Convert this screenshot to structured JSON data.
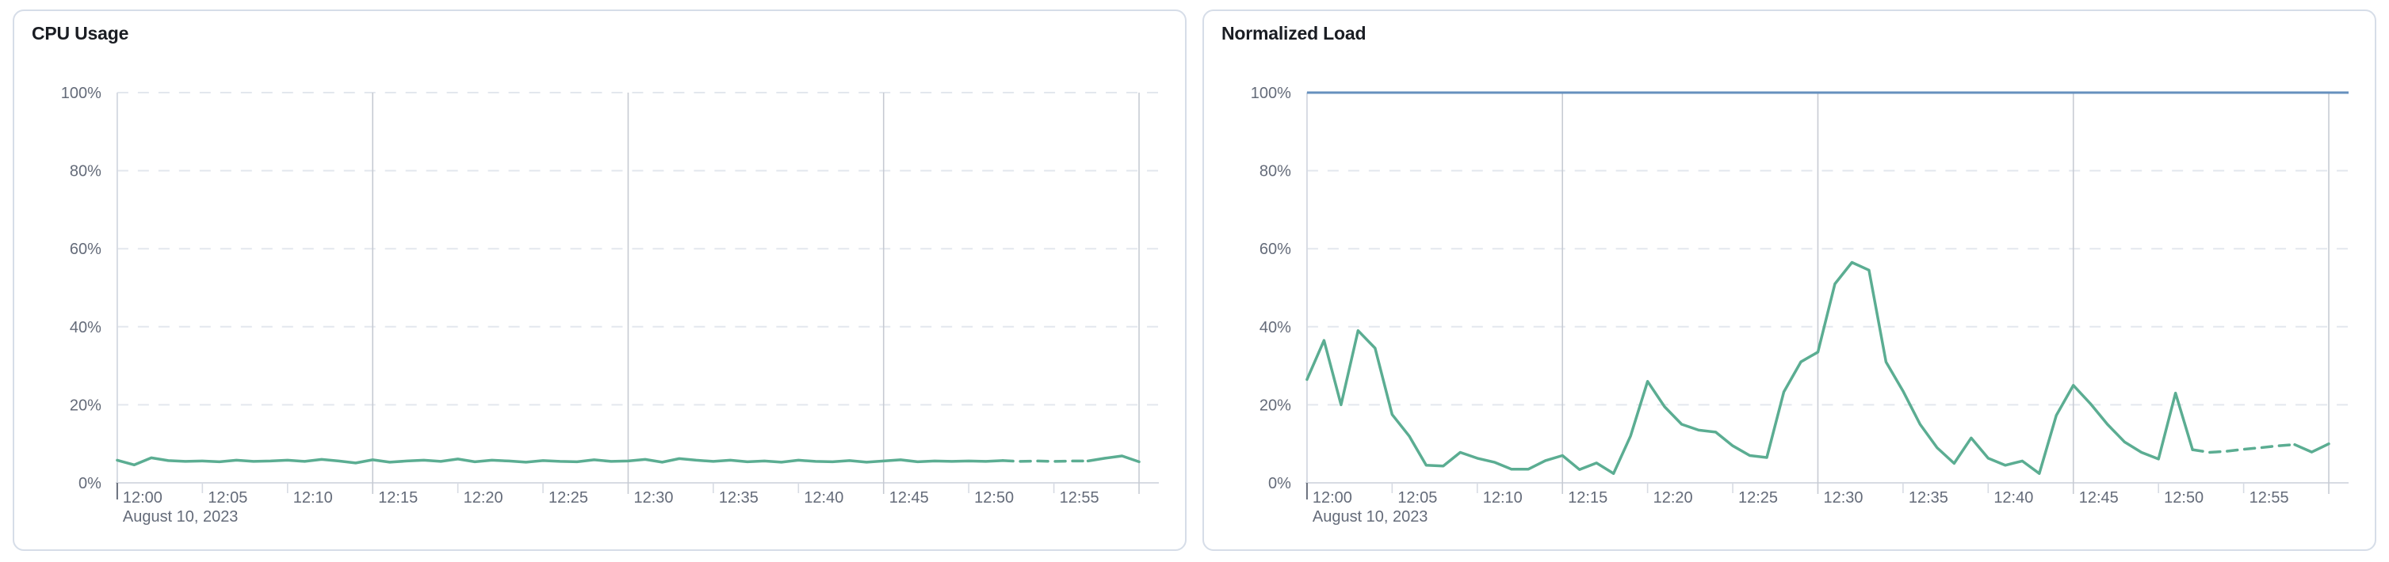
{
  "page": {
    "background": "#ffffff"
  },
  "panels": [
    {
      "title": "CPU Usage"
    },
    {
      "title": "Normalized Load"
    }
  ],
  "colors": {
    "series_green": "#5BAD92",
    "threshold_blue": "#6690BE",
    "grid_dashed": "#e3e7ee",
    "grid_major": "#c7cbd3",
    "axis_line": "#d7dbe3",
    "tick_text": "#646b79",
    "title_text": "#1a1d23",
    "origin_tick": "#69707d",
    "card_border": "#d6dde8"
  },
  "chart_data": [
    {
      "type": "line",
      "title": "CPU Usage",
      "xlabel": "",
      "ylabel": "",
      "x_axis": {
        "date_label": "August 10, 2023",
        "domain_minutes": [
          0,
          60
        ],
        "tick_minutes": [
          0,
          5,
          10,
          15,
          20,
          25,
          30,
          35,
          40,
          45,
          50,
          55
        ],
        "tick_labels": [
          "12:00",
          "12:05",
          "12:10",
          "12:15",
          "12:20",
          "12:25",
          "12:30",
          "12:35",
          "12:40",
          "12:45",
          "12:50",
          "12:55"
        ],
        "major_gridline_minutes": [
          15,
          30,
          45
        ],
        "end_line_minute": 60
      },
      "y_axis": {
        "ylim": [
          0,
          100
        ],
        "tick_values": [
          0,
          20,
          40,
          60,
          80,
          100
        ],
        "tick_labels": [
          "0%",
          "20%",
          "40%",
          "60%",
          "80%",
          "100%"
        ]
      },
      "threshold_line": null,
      "series": [
        {
          "name": "CPU Usage",
          "color": "#5BAD92",
          "x_minutes": [
            0,
            1,
            2,
            3,
            4,
            5,
            6,
            7,
            8,
            9,
            10,
            11,
            12,
            13,
            14,
            15,
            16,
            17,
            18,
            19,
            20,
            21,
            22,
            23,
            24,
            25,
            26,
            27,
            28,
            29,
            30,
            31,
            32,
            33,
            34,
            35,
            36,
            37,
            38,
            39,
            40,
            41,
            42,
            43,
            44,
            45,
            46,
            47,
            48,
            49,
            50,
            51,
            52,
            53,
            54,
            55,
            56,
            57,
            58,
            59,
            60
          ],
          "values": [
            5.8,
            4.6,
            6.4,
            5.7,
            5.5,
            5.6,
            5.4,
            5.8,
            5.5,
            5.6,
            5.8,
            5.5,
            6.0,
            5.6,
            5.1,
            5.9,
            5.3,
            5.6,
            5.8,
            5.5,
            6.1,
            5.4,
            5.8,
            5.6,
            5.3,
            5.7,
            5.5,
            5.4,
            5.9,
            5.5,
            5.6,
            6.0,
            5.3,
            6.2,
            5.8,
            5.5,
            5.8,
            5.4,
            5.6,
            5.3,
            5.8,
            5.5,
            5.4,
            5.7,
            5.3,
            5.6,
            5.9,
            5.4,
            5.6,
            5.5,
            5.6,
            5.5,
            5.7,
            5.5,
            5.6,
            5.5,
            5.6,
            5.6,
            6.3,
            6.9,
            5.4
          ],
          "style_segments": [
            {
              "from": 0,
              "to": 52,
              "style": "solid"
            },
            {
              "from": 52,
              "to": 57,
              "style": "dashed"
            },
            {
              "from": 57,
              "to": 60,
              "style": "solid"
            }
          ]
        }
      ]
    },
    {
      "type": "line",
      "title": "Normalized Load",
      "xlabel": "",
      "ylabel": "",
      "x_axis": {
        "date_label": "August 10, 2023",
        "domain_minutes": [
          0,
          60
        ],
        "tick_minutes": [
          0,
          5,
          10,
          15,
          20,
          25,
          30,
          35,
          40,
          45,
          50,
          55
        ],
        "tick_labels": [
          "12:00",
          "12:05",
          "12:10",
          "12:15",
          "12:20",
          "12:25",
          "12:30",
          "12:35",
          "12:40",
          "12:45",
          "12:50",
          "12:55"
        ],
        "major_gridline_minutes": [
          15,
          30,
          45
        ],
        "end_line_minute": 60
      },
      "y_axis": {
        "ylim": [
          0,
          100
        ],
        "tick_values": [
          0,
          20,
          40,
          60,
          80,
          100
        ],
        "tick_labels": [
          "0%",
          "20%",
          "40%",
          "60%",
          "80%",
          "100%"
        ]
      },
      "threshold_line": {
        "value": 100,
        "color": "#6690BE"
      },
      "series": [
        {
          "name": "Normalized Load",
          "color": "#5BAD92",
          "x_minutes": [
            0,
            1,
            2,
            3,
            4,
            5,
            6,
            7,
            8,
            9,
            10,
            11,
            12,
            13,
            14,
            15,
            16,
            17,
            18,
            19,
            20,
            21,
            22,
            23,
            24,
            25,
            26,
            27,
            28,
            29,
            30,
            31,
            32,
            33,
            34,
            35,
            36,
            37,
            38,
            39,
            40,
            41,
            42,
            43,
            44,
            45,
            46,
            47,
            48,
            49,
            50,
            51,
            52,
            53,
            54,
            55,
            56,
            57,
            58,
            59,
            60
          ],
          "values": [
            26.5,
            36.5,
            20,
            39,
            34.5,
            17.5,
            12,
            4.5,
            4.3,
            7.8,
            6.3,
            5.3,
            3.5,
            3.5,
            5.7,
            7,
            3.4,
            5.1,
            2.4,
            12,
            26,
            19.5,
            15,
            13.5,
            13,
            9.5,
            7,
            6.5,
            23.3,
            31,
            33.5,
            51,
            56.5,
            54.5,
            31,
            23.5,
            15,
            9,
            5,
            11.5,
            6.3,
            4.5,
            5.6,
            2.4,
            17.3,
            25,
            20.3,
            15,
            10.5,
            7.8,
            6.1,
            23,
            8.5,
            7.8,
            8.1,
            8.6,
            9,
            9.5,
            9.8,
            7.9,
            10
          ],
          "style_segments": [
            {
              "from": 0,
              "to": 52,
              "style": "solid"
            },
            {
              "from": 52,
              "to": 58,
              "style": "dashed"
            },
            {
              "from": 58,
              "to": 60,
              "style": "solid"
            }
          ]
        }
      ]
    }
  ]
}
